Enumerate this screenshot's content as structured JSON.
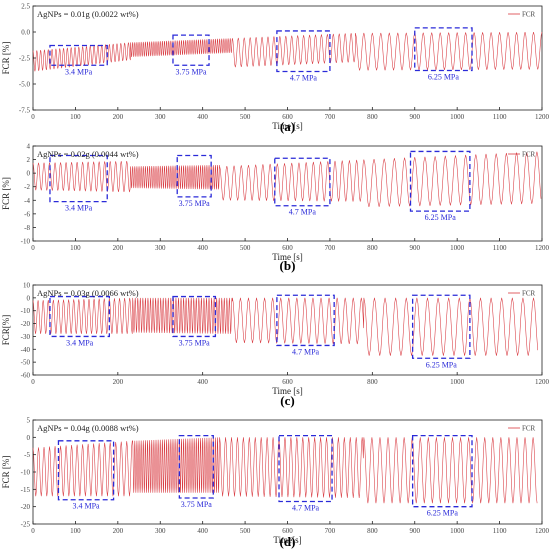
{
  "figure": {
    "chart_data": [
      {
        "type": "line",
        "panel_label": "(a)",
        "annotation": "AgNPs = 0.01g (0.0022 wt%)",
        "legend": "FCR",
        "legend_position": "top-right",
        "xlabel": "Time [s]",
        "ylabel": "FCR [%]",
        "xlim": [
          0,
          1200
        ],
        "ylim": [
          -7.5,
          2.5
        ],
        "xticks": [
          0,
          100,
          200,
          300,
          400,
          500,
          600,
          700,
          800,
          900,
          1000,
          1100,
          1200
        ],
        "yticks": [
          2.5,
          0.0,
          -2.5,
          -5.0,
          -7.5
        ],
        "ytick_labels": [
          "2.5",
          "0.0",
          "-2.5",
          "-5.0",
          "-7.5"
        ],
        "series": [
          {
            "name": "FCR",
            "segments": [
              {
                "x": [
                  0,
                  230
                ],
                "period": 9,
                "max_start": -1.8,
                "max_end": -1.0,
                "min_start": -3.8,
                "min_end": -2.7
              },
              {
                "x": [
                  230,
                  470
                ],
                "period": 5,
                "max_start": -1.0,
                "max_end": -0.6,
                "min_start": -2.4,
                "min_end": -2.0
              },
              {
                "x": [
                  470,
                  760
                ],
                "period": 14,
                "max_start": -0.6,
                "max_end": -0.1,
                "min_start": -3.4,
                "min_end": -2.9
              },
              {
                "x": [
                  760,
                  1200
                ],
                "period": 20,
                "max_start": -0.1,
                "max_end": 0.0,
                "min_start": -3.7,
                "min_end": -3.6
              }
            ]
          }
        ],
        "regions": [
          {
            "label": "3.4 MPa",
            "x": [
              40,
              175
            ],
            "y": [
              -1.3,
              -3.2
            ]
          },
          {
            "label": "3.75 MPa",
            "x": [
              330,
              415
            ],
            "y": [
              -0.3,
              -3.2
            ]
          },
          {
            "label": "4.7 MPa",
            "x": [
              575,
              700
            ],
            "y": [
              0.1,
              -3.8
            ]
          },
          {
            "label": "6.25 MPa",
            "x": [
              900,
              1035
            ],
            "y": [
              0.4,
              -3.7
            ]
          }
        ]
      },
      {
        "type": "line",
        "panel_label": "(b)",
        "annotation": "AgNPs = 0.02g (0.0044 wt%)",
        "legend": "FCR",
        "legend_position": "top-right",
        "xlabel": "Time [s]",
        "ylabel": "FCR [%]",
        "xlim": [
          0,
          1200
        ],
        "ylim": [
          -10,
          4
        ],
        "xticks": [
          0,
          100,
          200,
          300,
          400,
          500,
          600,
          700,
          800,
          900,
          1000,
          1100,
          1200
        ],
        "yticks": [
          4,
          2,
          0,
          -2,
          -4,
          -6,
          -8,
          -10
        ],
        "ytick_labels": [
          "4",
          "2",
          "0",
          "-2",
          "-4",
          "-6",
          "-8",
          "-10"
        ],
        "series": [
          {
            "name": "FCR",
            "segments": [
              {
                "x": [
                  0,
                  230
                ],
                "period": 13,
                "max_start": 1.5,
                "max_end": 1.8,
                "min_start": -2.5,
                "min_end": -2.8
              },
              {
                "x": [
                  230,
                  440
                ],
                "period": 5,
                "max_start": 1.0,
                "max_end": 1.2,
                "min_start": -2.2,
                "min_end": -2.4
              },
              {
                "x": [
                  440,
                  780
                ],
                "period": 17,
                "max_start": 1.0,
                "max_end": 2.0,
                "min_start": -4.0,
                "min_end": -4.2
              },
              {
                "x": [
                  780,
                  1200
                ],
                "period": 24,
                "max_start": 2.0,
                "max_end": 3.2,
                "min_start": -5.0,
                "min_end": -4.5
              }
            ]
          }
        ],
        "regions": [
          {
            "label": "3.4 MPa",
            "x": [
              40,
              175
            ],
            "y": [
              2.6,
              -4.2
            ]
          },
          {
            "label": "3.75 MPa",
            "x": [
              340,
              420
            ],
            "y": [
              2.6,
              -3.5
            ]
          },
          {
            "label": "4.7 MPa",
            "x": [
              570,
              700
            ],
            "y": [
              2.2,
              -4.8
            ]
          },
          {
            "label": "6.25 MPa",
            "x": [
              890,
              1030
            ],
            "y": [
              3.2,
              -5.6
            ]
          }
        ]
      },
      {
        "type": "line",
        "panel_label": "(c)",
        "annotation": "AgNPs = 0.03g (0.0066 wt%)",
        "legend": "FCR",
        "legend_position": "top-right",
        "xlabel": "Time [s]",
        "ylabel": "FCR[%]",
        "xlim": [
          0,
          1200
        ],
        "ylim": [
          -60,
          10
        ],
        "xticks": [
          0,
          200,
          400,
          600,
          800,
          1000,
          1200
        ],
        "yticks": [
          10,
          0,
          -10,
          -20,
          -30,
          -40,
          -50,
          -60
        ],
        "ytick_labels": [
          "10",
          "0",
          "-10",
          "-20",
          "-30",
          "-40",
          "-50",
          "-60"
        ],
        "series": [
          {
            "name": "FCR",
            "segments": [
              {
                "x": [
                  0,
                  235
                ],
                "period": 12,
                "max_start": -2,
                "max_end": 0,
                "min_start": -28,
                "min_end": -28
              },
              {
                "x": [
                  235,
                  470
                ],
                "period": 6,
                "max_start": 0,
                "max_end": 0,
                "min_start": -27,
                "min_end": -28
              },
              {
                "x": [
                  470,
                  780
                ],
                "period": 19,
                "max_start": 0,
                "max_end": 0,
                "min_start": -35,
                "min_end": -36
              },
              {
                "x": [
                  780,
                  1190
                ],
                "period": 25,
                "max_start": 0,
                "max_end": 0,
                "min_start": -45,
                "min_end": -45
              }
            ]
          }
        ],
        "regions": [
          {
            "label": "3.4 MPa",
            "x": [
              40,
              180
            ],
            "y": [
              1,
              -30
            ]
          },
          {
            "label": "3.75 MPa",
            "x": [
              330,
              430
            ],
            "y": [
              1,
              -30
            ]
          },
          {
            "label": "4.7 MPa",
            "x": [
              575,
              710
            ],
            "y": [
              2,
              -37
            ]
          },
          {
            "label": "6.25 MPa",
            "x": [
              895,
              1030
            ],
            "y": [
              2,
              -47
            ]
          }
        ]
      },
      {
        "type": "line",
        "panel_label": "(d)",
        "annotation": "AgNPs = 0.04g (0.0088 wt%)",
        "legend": "FCR",
        "legend_position": "top-right",
        "xlabel": "Time[s]",
        "ylabel": "FCR [%]",
        "xlim": [
          0,
          1200
        ],
        "ylim": [
          -25,
          5
        ],
        "xticks": [
          0,
          100,
          200,
          300,
          400,
          500,
          600,
          700,
          800,
          900,
          1000,
          1100,
          1200
        ],
        "yticks": [
          5,
          0,
          -5,
          -10,
          -15,
          -20,
          -25
        ],
        "ytick_labels": [
          "5",
          "0",
          "-5",
          "-10",
          "-15",
          "-20",
          "-25"
        ],
        "series": [
          {
            "name": "FCR",
            "segments": [
              {
                "x": [
                  0,
                  235
                ],
                "period": 13,
                "max_start": -3,
                "max_end": -1,
                "min_start": -17,
                "min_end": -17
              },
              {
                "x": [
                  235,
                  440
                ],
                "period": 5,
                "max_start": -1,
                "max_end": 0,
                "min_start": -16,
                "min_end": -16
              },
              {
                "x": [
                  440,
                  780
                ],
                "period": 14,
                "max_start": 0,
                "max_end": 0,
                "min_start": -17,
                "min_end": -17.5
              },
              {
                "x": [
                  780,
                  1190
                ],
                "period": 19,
                "max_start": 0,
                "max_end": 0,
                "min_start": -19,
                "min_end": -19
              }
            ]
          }
        ],
        "regions": [
          {
            "label": "3.4 MPa",
            "x": [
              60,
              190
            ],
            "y": [
              -1,
              -18
            ]
          },
          {
            "label": "3.75 MPa",
            "x": [
              345,
              425
            ],
            "y": [
              0.5,
              -17.5
            ]
          },
          {
            "label": "4.7 MPa",
            "x": [
              580,
              705
            ],
            "y": [
              0.5,
              -18.5
            ]
          },
          {
            "label": "6.25 MPa",
            "x": [
              895,
              1035
            ],
            "y": [
              0.5,
              -20
            ]
          }
        ]
      }
    ]
  },
  "colors": {
    "line": "#d8383f",
    "region": "#2a2ad8",
    "axis": "#222222",
    "panel_label": "#000000"
  }
}
